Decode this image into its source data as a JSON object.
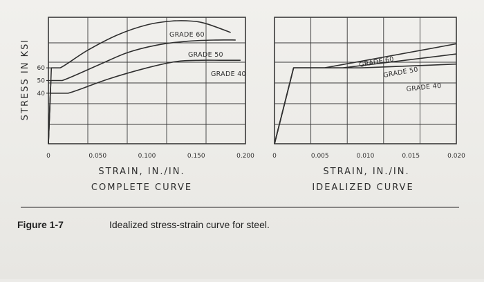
{
  "figure": {
    "number": "Figure 1-7",
    "caption": "Idealized stress-strain curve for steel."
  },
  "colors": {
    "ink": "#2f2f2f",
    "grid": "#3a3a3a",
    "background": "#ecebe8"
  },
  "chart_data": [
    {
      "type": "line",
      "title": "COMPLETE CURVE",
      "xlabel": "STRAIN, IN./IN.",
      "ylabel": "STRESS IN KSI",
      "xlim": [
        0,
        0.2
      ],
      "ylim": [
        0,
        100
      ],
      "grid": true,
      "x_ticks": [
        {
          "value": 0,
          "label": "0"
        },
        {
          "value": 0.05,
          "label": "0.050"
        },
        {
          "value": 0.1,
          "label": "0.100"
        },
        {
          "value": 0.15,
          "label": "0.150"
        },
        {
          "value": 0.2,
          "label": "0.200"
        }
      ],
      "y_ticks": [
        {
          "value": 40,
          "label": "40"
        },
        {
          "value": 50,
          "label": "50"
        },
        {
          "value": 60,
          "label": "60"
        }
      ],
      "series": [
        {
          "name": "GRADE 60",
          "x": [
            0,
            0.003,
            0.012,
            0.04,
            0.07,
            0.1,
            0.125,
            0.145,
            0.16,
            0.185
          ],
          "y": [
            0,
            60,
            60,
            74,
            86,
            94,
            97,
            97,
            95,
            88
          ]
        },
        {
          "name": "GRADE 50",
          "x": [
            0,
            0.0025,
            0.014,
            0.05,
            0.08,
            0.11,
            0.14,
            0.17,
            0.19
          ],
          "y": [
            0,
            50,
            50,
            62,
            72,
            78,
            81,
            82,
            82
          ]
        },
        {
          "name": "GRADE 40",
          "x": [
            0,
            0.002,
            0.02,
            0.06,
            0.1,
            0.13,
            0.155,
            0.175,
            0.195
          ],
          "y": [
            0,
            40,
            40,
            51,
            60,
            65,
            66,
            66,
            66
          ]
        }
      ]
    },
    {
      "type": "line",
      "title": "IDEALIZED CURVE",
      "xlabel": "STRAIN, IN./IN.",
      "ylabel": "",
      "xlim": [
        0,
        0.02
      ],
      "ylim": [
        0,
        100
      ],
      "grid": true,
      "x_ticks": [
        {
          "value": 0,
          "label": "0"
        },
        {
          "value": 0.005,
          "label": "0.005"
        },
        {
          "value": 0.01,
          "label": "0.010"
        },
        {
          "value": 0.015,
          "label": "0.015"
        },
        {
          "value": 0.02,
          "label": "0.020"
        }
      ],
      "series": [
        {
          "name": "GRADE 60",
          "x": [
            0,
            0.0021,
            0.0035,
            0.0055,
            0.02
          ],
          "y": [
            0,
            60,
            60,
            60,
            79
          ]
        },
        {
          "name": "GRADE 50",
          "x": [
            0,
            0.0021,
            0.0035,
            0.0075,
            0.02
          ],
          "y": [
            0,
            60,
            60,
            60,
            71
          ]
        },
        {
          "name": "GRADE 40",
          "x": [
            0,
            0.0021,
            0.0035,
            0.0095,
            0.02
          ],
          "y": [
            0,
            60,
            60,
            60,
            63
          ]
        }
      ]
    }
  ]
}
